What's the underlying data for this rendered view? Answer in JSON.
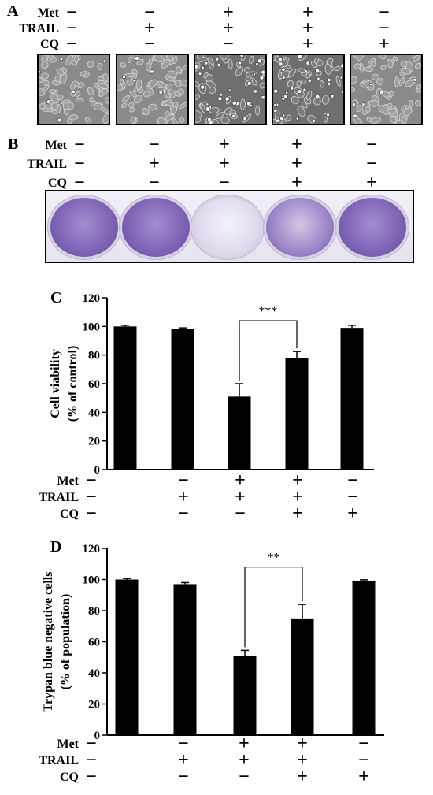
{
  "treatments": {
    "labels": [
      "Met",
      "TRAIL",
      "CQ"
    ],
    "matrix": [
      [
        "−",
        "−",
        "+",
        "+",
        "−"
      ],
      [
        "−",
        "+",
        "+",
        "+",
        "−"
      ],
      [
        "−",
        "−",
        "−",
        "+",
        "+"
      ]
    ]
  },
  "panel_a": {
    "letter": "A",
    "photos": [
      {
        "density": "high",
        "rounded_cells": "few"
      },
      {
        "density": "high",
        "rounded_cells": "few"
      },
      {
        "density": "reduced",
        "rounded_cells": "many"
      },
      {
        "density": "reduced",
        "rounded_cells": "many"
      },
      {
        "density": "high",
        "rounded_cells": "few"
      }
    ]
  },
  "panel_b": {
    "letter": "B",
    "wells": [
      {
        "stain": "dense"
      },
      {
        "stain": "dense"
      },
      {
        "stain": "faint"
      },
      {
        "stain": "medium"
      },
      {
        "stain": "dense"
      }
    ],
    "colors": {
      "stain_dense": "#7a5fb3",
      "stain_faint": "#ddd6ea",
      "plate_bg": "#ece8f2"
    }
  },
  "chart_data": [
    {
      "panel": "C",
      "type": "bar",
      "categories": [
        "1",
        "2",
        "3",
        "4",
        "5"
      ],
      "values": [
        100,
        98,
        51,
        78,
        99
      ],
      "errors": [
        0.8,
        1.0,
        9,
        4.5,
        1.8
      ],
      "ylabel": [
        "Cell viability",
        "(% of control)"
      ],
      "ylim": [
        0,
        120
      ],
      "yticks": [
        0,
        20,
        40,
        60,
        80,
        100,
        120
      ],
      "significance": {
        "from": 2,
        "to": 3,
        "label": "***"
      },
      "bar_color": "#000000",
      "grid": false
    },
    {
      "panel": "D",
      "type": "bar",
      "categories": [
        "1",
        "2",
        "3",
        "4",
        "5"
      ],
      "values": [
        100,
        97,
        51,
        75,
        99
      ],
      "errors": [
        0.7,
        1.0,
        3.5,
        9,
        0.8
      ],
      "ylabel": [
        "Trypan blue negative cells",
        "(% of population)"
      ],
      "ylim": [
        0,
        120
      ],
      "yticks": [
        0,
        20,
        40,
        60,
        80,
        100,
        120
      ],
      "significance": {
        "from": 2,
        "to": 3,
        "label": "**"
      },
      "bar_color": "#000000",
      "grid": false
    }
  ]
}
